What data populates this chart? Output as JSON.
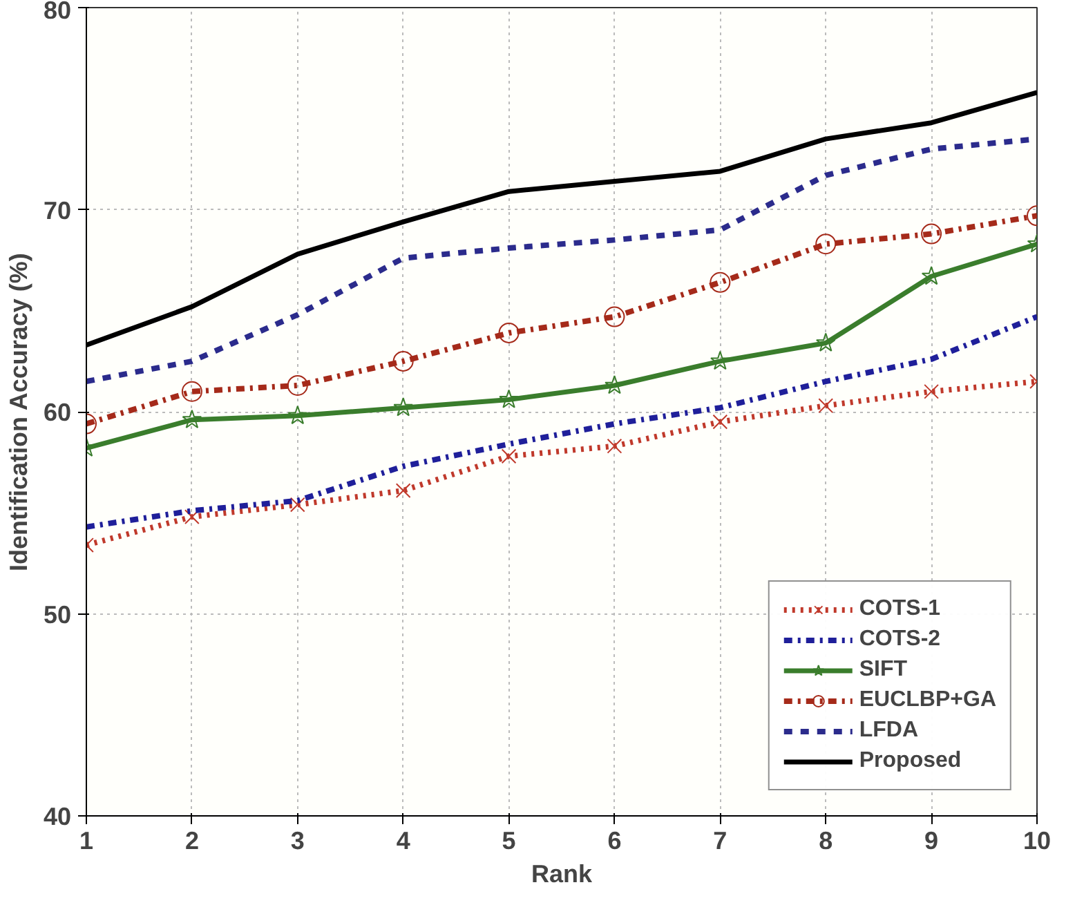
{
  "chart_data": {
    "type": "line",
    "xlabel": "Rank",
    "ylabel": "Identification Accuracy (%)",
    "x": [
      1,
      2,
      3,
      4,
      5,
      6,
      7,
      8,
      9,
      10
    ],
    "xlim": [
      1,
      10
    ],
    "xticks": [
      1,
      2,
      3,
      4,
      5,
      6,
      7,
      8,
      9,
      10
    ],
    "ylim": [
      40,
      80
    ],
    "yticks": [
      40,
      50,
      60,
      70,
      80
    ],
    "grid": true,
    "legend": "bottom right",
    "series": [
      {
        "name": "COTS-1",
        "color": "#c0392b",
        "line_style": "dotted",
        "marker": "cross",
        "values": [
          53.4,
          54.8,
          55.4,
          56.1,
          57.8,
          58.3,
          59.5,
          60.3,
          61.0,
          61.5
        ]
      },
      {
        "name": "COTS-2",
        "color": "#1f1f9a",
        "line_style": "dashdot",
        "marker": "none",
        "values": [
          54.3,
          55.1,
          55.6,
          57.3,
          58.4,
          59.4,
          60.2,
          61.5,
          62.6,
          64.7
        ]
      },
      {
        "name": "SIFT",
        "color": "#3a7d2c",
        "line_style": "solid",
        "marker": "star",
        "values": [
          58.2,
          59.6,
          59.8,
          60.2,
          60.6,
          61.3,
          62.5,
          63.4,
          66.7,
          68.3
        ]
      },
      {
        "name": "EUCLBP+GA",
        "color": "#a52a1a",
        "line_style": "dashdot",
        "marker": "circle",
        "values": [
          59.4,
          61.0,
          61.3,
          62.5,
          63.9,
          64.7,
          66.4,
          68.3,
          68.8,
          69.7
        ]
      },
      {
        "name": "LFDA",
        "color": "#2b2b8c",
        "line_style": "dashed",
        "marker": "none",
        "values": [
          61.5,
          62.5,
          64.8,
          67.6,
          68.1,
          68.5,
          69.0,
          71.7,
          73.0,
          73.5
        ]
      },
      {
        "name": "Proposed",
        "color": "#000000",
        "line_style": "solid",
        "marker": "none",
        "values": [
          63.3,
          65.2,
          67.8,
          69.4,
          70.9,
          71.4,
          71.9,
          73.5,
          74.3,
          75.8
        ]
      }
    ]
  }
}
